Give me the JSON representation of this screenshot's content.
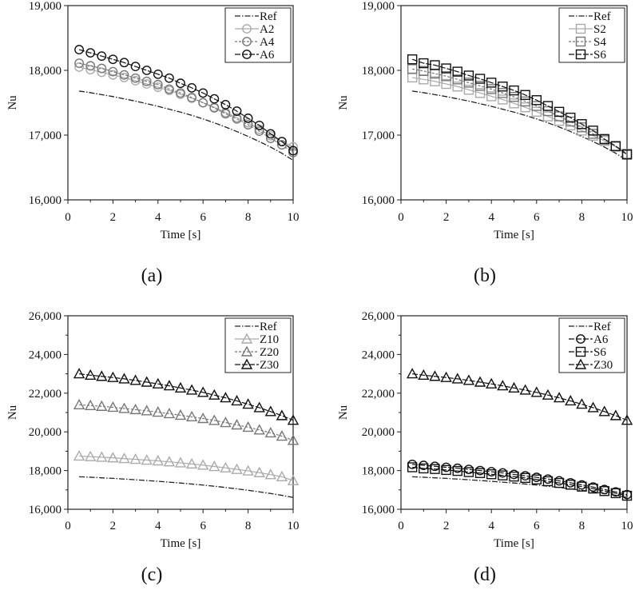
{
  "chart_data": [
    {
      "panel_label": "(a)",
      "type": "line",
      "xlabel": "Time [s]",
      "ylabel": "Nu",
      "xlim": [
        0,
        10
      ],
      "ylim": [
        16000,
        19000
      ],
      "xticks": [
        "0",
        "2",
        "4",
        "6",
        "8",
        "10"
      ],
      "yticks": [
        "16,000",
        "17,000",
        "18,000",
        "19,000"
      ],
      "legend_placement": "top-right",
      "x": [
        0.5,
        1,
        1.5,
        2,
        2.5,
        3,
        3.5,
        4,
        4.5,
        5,
        5.5,
        6,
        6.5,
        7,
        7.5,
        8,
        8.5,
        9,
        9.5,
        10
      ],
      "series": [
        {
          "name": "Ref",
          "style": "dashdot",
          "marker": "none",
          "color": "#222222",
          "values": [
            17680,
            17655,
            17625,
            17595,
            17560,
            17525,
            17485,
            17445,
            17400,
            17355,
            17305,
            17250,
            17190,
            17125,
            17055,
            16980,
            16900,
            16815,
            16720,
            16610
          ]
        },
        {
          "name": "A2",
          "style": "solid",
          "marker": "circle",
          "color": "#aaaaaa",
          "values": [
            18050,
            18010,
            17970,
            17930,
            17890,
            17840,
            17790,
            17740,
            17690,
            17630,
            17570,
            17500,
            17430,
            17350,
            17270,
            17190,
            17090,
            16990,
            16900,
            16820
          ]
        },
        {
          "name": "A4",
          "style": "dashed",
          "marker": "circle",
          "color": "#777777",
          "values": [
            18110,
            18070,
            18030,
            17980,
            17930,
            17880,
            17830,
            17780,
            17710,
            17650,
            17580,
            17500,
            17420,
            17330,
            17250,
            17160,
            17060,
            16950,
            16850,
            16730
          ]
        },
        {
          "name": "A6",
          "style": "longdash",
          "marker": "circle",
          "color": "#111111",
          "values": [
            18320,
            18270,
            18220,
            18170,
            18120,
            18060,
            18000,
            17940,
            17880,
            17800,
            17730,
            17650,
            17560,
            17470,
            17370,
            17260,
            17150,
            17020,
            16900,
            16760
          ]
        }
      ]
    },
    {
      "panel_label": "(b)",
      "type": "line",
      "xlabel": "Time [s]",
      "ylabel": "Nu",
      "xlim": [
        0,
        10
      ],
      "ylim": [
        16000,
        19000
      ],
      "xticks": [
        "0",
        "2",
        "4",
        "6",
        "8",
        "10"
      ],
      "yticks": [
        "16,000",
        "17,000",
        "18,000",
        "19,000"
      ],
      "legend_placement": "top-right",
      "x": [
        0.5,
        1,
        1.5,
        2,
        2.5,
        3,
        3.5,
        4,
        4.5,
        5,
        5.5,
        6,
        6.5,
        7,
        7.5,
        8,
        8.5,
        9,
        9.5,
        10
      ],
      "series": [
        {
          "name": "Ref",
          "style": "dashdot",
          "marker": "none",
          "color": "#222222",
          "values": [
            17680,
            17655,
            17625,
            17595,
            17560,
            17525,
            17485,
            17445,
            17400,
            17355,
            17305,
            17250,
            17190,
            17125,
            17055,
            16980,
            16900,
            16815,
            16720,
            16610
          ]
        },
        {
          "name": "S2",
          "style": "solid",
          "marker": "square",
          "color": "#aaaaaa",
          "values": [
            17890,
            17860,
            17830,
            17790,
            17750,
            17700,
            17650,
            17600,
            17550,
            17490,
            17430,
            17360,
            17290,
            17220,
            17150,
            17070,
            16990,
            16910,
            16820,
            16700
          ]
        },
        {
          "name": "S4",
          "style": "dashed",
          "marker": "square",
          "color": "#777777",
          "values": [
            18020,
            17990,
            17950,
            17910,
            17860,
            17810,
            17760,
            17710,
            17650,
            17590,
            17520,
            17450,
            17370,
            17290,
            17210,
            17120,
            17020,
            16930,
            16830,
            16710
          ]
        },
        {
          "name": "S6",
          "style": "longdash",
          "marker": "square",
          "color": "#111111",
          "values": [
            18170,
            18110,
            18080,
            18030,
            17980,
            17920,
            17870,
            17810,
            17750,
            17690,
            17620,
            17540,
            17450,
            17360,
            17270,
            17170,
            17070,
            16940,
            16830,
            16700
          ]
        }
      ]
    },
    {
      "panel_label": "(c)",
      "type": "line",
      "xlabel": "Time [s]",
      "ylabel": "Nu",
      "xlim": [
        0,
        10
      ],
      "ylim": [
        16000,
        26000
      ],
      "xticks": [
        "0",
        "2",
        "4",
        "6",
        "8",
        "10"
      ],
      "yticks": [
        "16,000",
        "18,000",
        "20,000",
        "22,000",
        "24,000",
        "26,000"
      ],
      "legend_placement": "top-right",
      "x": [
        0.5,
        1,
        1.5,
        2,
        2.5,
        3,
        3.5,
        4,
        4.5,
        5,
        5.5,
        6,
        6.5,
        7,
        7.5,
        8,
        8.5,
        9,
        9.5,
        10
      ],
      "series": [
        {
          "name": "Ref",
          "style": "dashdot",
          "marker": "none",
          "color": "#222222",
          "values": [
            17680,
            17655,
            17625,
            17595,
            17560,
            17525,
            17485,
            17445,
            17400,
            17355,
            17305,
            17250,
            17190,
            17125,
            17055,
            16980,
            16900,
            16815,
            16720,
            16610
          ]
        },
        {
          "name": "Z10",
          "style": "solid",
          "marker": "triangle",
          "color": "#aaaaaa",
          "values": [
            18750,
            18720,
            18690,
            18660,
            18620,
            18580,
            18540,
            18500,
            18450,
            18400,
            18340,
            18280,
            18210,
            18140,
            18060,
            17980,
            17890,
            17790,
            17680,
            17480
          ]
        },
        {
          "name": "Z20",
          "style": "dashed",
          "marker": "triangle",
          "color": "#777777",
          "values": [
            21400,
            21360,
            21320,
            21270,
            21210,
            21150,
            21090,
            21020,
            20940,
            20860,
            20780,
            20690,
            20590,
            20480,
            20360,
            20240,
            20100,
            19950,
            19780,
            19560
          ]
        },
        {
          "name": "Z30",
          "style": "longdash",
          "marker": "triangle",
          "color": "#111111",
          "values": [
            23000,
            22930,
            22870,
            22810,
            22740,
            22660,
            22570,
            22480,
            22380,
            22270,
            22160,
            22040,
            21900,
            21760,
            21600,
            21430,
            21250,
            21050,
            20840,
            20600
          ]
        }
      ]
    },
    {
      "panel_label": "(d)",
      "type": "line",
      "xlabel": "Time [s]",
      "ylabel": "Nu",
      "xlim": [
        0,
        10
      ],
      "ylim": [
        16000,
        26000
      ],
      "xticks": [
        "0",
        "2",
        "4",
        "6",
        "8",
        "10"
      ],
      "yticks": [
        "16,000",
        "18,000",
        "20,000",
        "22,000",
        "24,000",
        "26,000"
      ],
      "legend_placement": "top-right",
      "x": [
        0.5,
        1,
        1.5,
        2,
        2.5,
        3,
        3.5,
        4,
        4.5,
        5,
        5.5,
        6,
        6.5,
        7,
        7.5,
        8,
        8.5,
        9,
        9.5,
        10
      ],
      "series": [
        {
          "name": "Ref",
          "style": "dashdot",
          "marker": "none",
          "color": "#222222",
          "values": [
            17680,
            17655,
            17625,
            17595,
            17560,
            17525,
            17485,
            17445,
            17400,
            17355,
            17305,
            17250,
            17190,
            17125,
            17055,
            16980,
            16900,
            16815,
            16720,
            16610
          ]
        },
        {
          "name": "A6",
          "style": "longdash",
          "marker": "circle",
          "color": "#111111",
          "values": [
            18320,
            18270,
            18220,
            18170,
            18120,
            18060,
            18000,
            17940,
            17880,
            17800,
            17730,
            17650,
            17560,
            17470,
            17370,
            17260,
            17150,
            17020,
            16900,
            16760
          ]
        },
        {
          "name": "S6",
          "style": "longdash",
          "marker": "square",
          "color": "#111111",
          "values": [
            18170,
            18110,
            18080,
            18030,
            17980,
            17920,
            17870,
            17810,
            17750,
            17690,
            17620,
            17540,
            17450,
            17360,
            17270,
            17170,
            17070,
            16940,
            16830,
            16700
          ]
        },
        {
          "name": "Z30",
          "style": "longdash",
          "marker": "triangle",
          "color": "#111111",
          "values": [
            23000,
            22930,
            22870,
            22810,
            22740,
            22660,
            22570,
            22480,
            22380,
            22270,
            22160,
            22040,
            21900,
            21760,
            21600,
            21430,
            21250,
            21050,
            20840,
            20600
          ]
        }
      ]
    }
  ]
}
